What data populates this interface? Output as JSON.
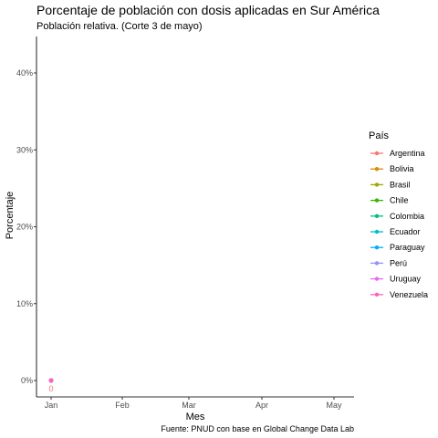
{
  "colors": {
    "Argentina": "#F8766D",
    "Bolivia": "#D98B0B",
    "Brasil": "#A3A500",
    "Chile": "#39B600",
    "Colombia": "#00BF7D",
    "Ecuador": "#00BFC4",
    "Paraguay": "#00B0F6",
    "Perú": "#9590FF",
    "Uruguay": "#E76BF3",
    "Venezuela": "#FF62BC"
  },
  "chart_data": {
    "type": "line",
    "title": "Porcentaje de población con dosis aplicadas en Sur América",
    "subtitle": "Población relativa. (Corte 3 de mayo)",
    "xlabel": "Mes",
    "ylabel": "Porcentaje",
    "caption": "Fuente: PNUD con base en Global Change Data Lab",
    "x_ticks": [
      "Jan",
      "Feb",
      "Mar",
      "Apr",
      "May"
    ],
    "y_ticks": [
      "0%",
      "10%",
      "20%",
      "30%",
      "40%"
    ],
    "ylim": [
      0,
      40
    ],
    "grid": false,
    "legend": {
      "title": "País",
      "position": "right",
      "entries": [
        "Argentina",
        "Bolivia",
        "Brasil",
        "Chile",
        "Colombia",
        "Ecuador",
        "Paraguay",
        "Perú",
        "Uruguay",
        "Venezuela"
      ]
    },
    "series": [
      {
        "name": "Argentina",
        "x": [
          "Jan"
        ],
        "values": [
          0
        ],
        "labels": [
          "0"
        ]
      },
      {
        "name": "Bolivia",
        "x": [
          "Jan"
        ],
        "values": [
          0
        ]
      },
      {
        "name": "Brasil",
        "x": [
          "Jan"
        ],
        "values": [
          0
        ]
      },
      {
        "name": "Chile",
        "x": [
          "Jan"
        ],
        "values": [
          0
        ]
      },
      {
        "name": "Colombia",
        "x": [
          "Jan"
        ],
        "values": [
          0
        ]
      },
      {
        "name": "Ecuador",
        "x": [
          "Jan"
        ],
        "values": [
          0
        ]
      },
      {
        "name": "Paraguay",
        "x": [
          "Jan"
        ],
        "values": [
          0
        ]
      },
      {
        "name": "Perú",
        "x": [
          "Jan"
        ],
        "values": [
          0
        ]
      },
      {
        "name": "Uruguay",
        "x": [
          "Jan"
        ],
        "values": [
          0
        ]
      },
      {
        "name": "Venezuela",
        "x": [
          "Jan"
        ],
        "values": [
          0
        ]
      }
    ]
  }
}
